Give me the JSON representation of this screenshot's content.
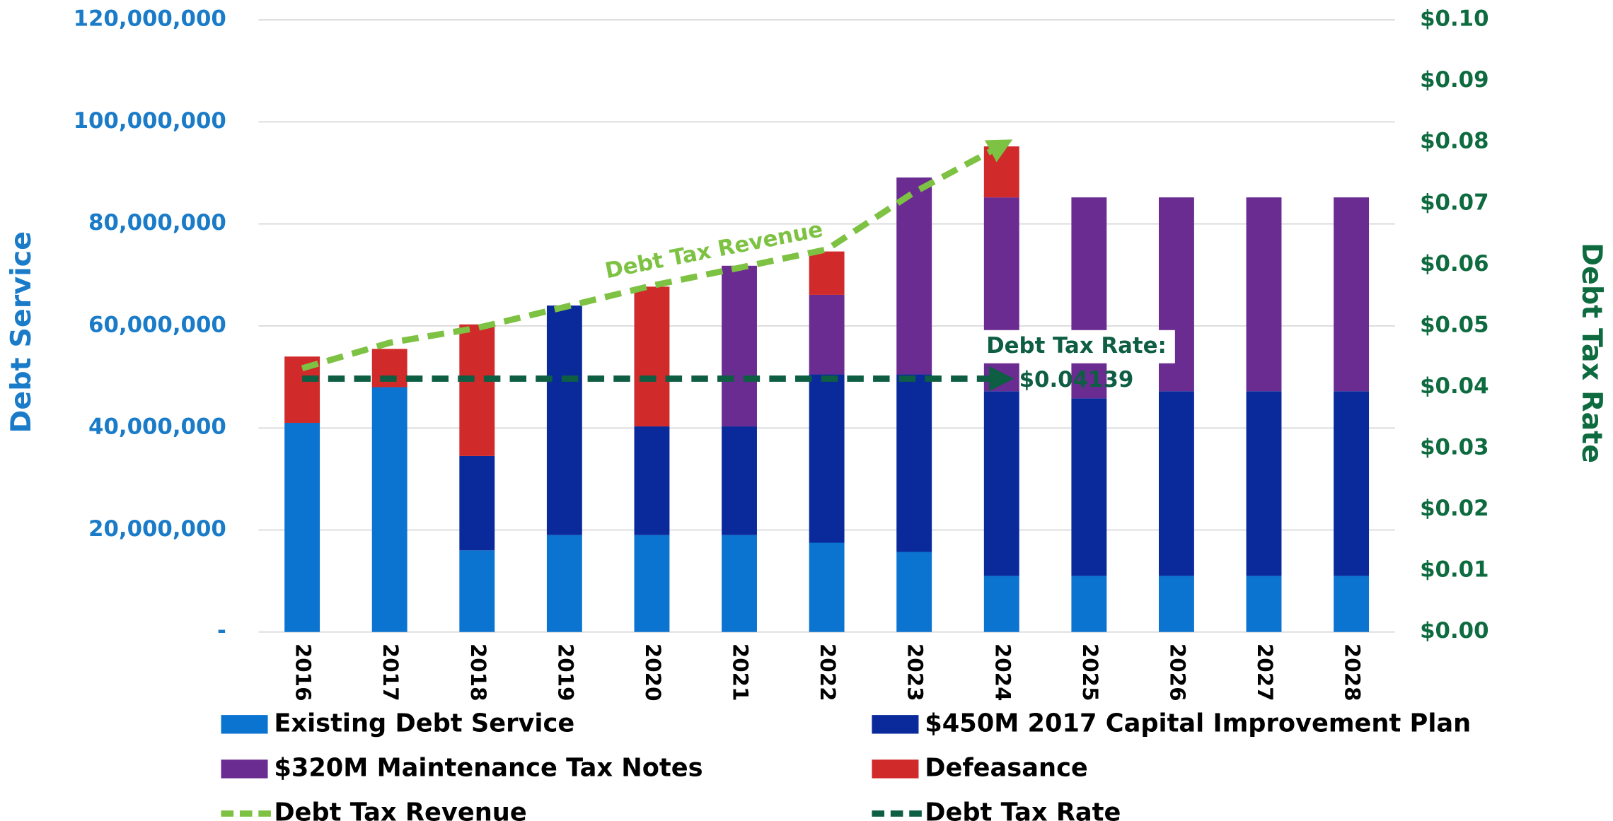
{
  "chart_data": {
    "type": "bar",
    "stacked": true,
    "categories": [
      "2016",
      "2017",
      "2018",
      "2019",
      "2020",
      "2021",
      "2022",
      "2023",
      "2024",
      "2025",
      "2026",
      "2027",
      "2028"
    ],
    "series": [
      {
        "name": "Existing Debt Service",
        "type": "bar",
        "color": "#0b74d1",
        "values": [
          41000000,
          48000000,
          16000000,
          19000000,
          19000000,
          19000000,
          17500000,
          15700000,
          11000000,
          11000000,
          11000000,
          11000000,
          11000000
        ]
      },
      {
        "name": "$450M 2017 Capital Improvement Plan",
        "type": "bar",
        "color": "#0a2a9c",
        "values": [
          null,
          null,
          18500000,
          45000000,
          21300000,
          21300000,
          33000000,
          34800000,
          36200000,
          34800000,
          36200000,
          36200000,
          36200000
        ]
      },
      {
        "name": "$320M Maintenance Tax Notes",
        "type": "bar",
        "color": "#6a2c91",
        "values": [
          null,
          null,
          null,
          null,
          null,
          31500000,
          15600000,
          38600000,
          38000000,
          39400000,
          38000000,
          38000000,
          38000000
        ]
      },
      {
        "name": "Defeasance",
        "type": "bar",
        "color": "#d02a2a",
        "values": [
          13000000,
          7500000,
          25800000,
          null,
          27400000,
          null,
          8500000,
          null,
          10000000,
          null,
          null,
          null,
          null
        ]
      },
      {
        "name": "Debt Tax Revenue",
        "type": "line",
        "dashed": true,
        "color": "#7dc242",
        "values": [
          51700000,
          56700000,
          59600000,
          63700000,
          67900000,
          71400000,
          75000000,
          86200000,
          95400000,
          null,
          null,
          null,
          null
        ]
      },
      {
        "name": "Debt Tax Rate",
        "type": "line",
        "dashed": true,
        "axis": "y2",
        "color": "#0e5e44",
        "values": [
          0.04139,
          0.04139,
          0.04139,
          0.04139,
          0.04139,
          0.04139,
          0.04139,
          0.04139,
          0.04139,
          null,
          null,
          null,
          null
        ]
      }
    ],
    "ylabel": "Debt Service",
    "y2label": "Debt Tax Rate",
    "ylim": [
      0,
      120000000
    ],
    "yticks": [
      {
        "value": 0,
        "label": "-"
      },
      {
        "value": 20000000,
        "label": "20,000,000"
      },
      {
        "value": 40000000,
        "label": "40,000,000"
      },
      {
        "value": 60000000,
        "label": "60,000,000"
      },
      {
        "value": 80000000,
        "label": "80,000,000"
      },
      {
        "value": 100000000,
        "label": "100,000,000"
      },
      {
        "value": 120000000,
        "label": "120,000,000"
      }
    ],
    "y2lim": [
      0,
      0.1
    ],
    "y2ticks": [
      {
        "value": 0,
        "label": "$0.00"
      },
      {
        "value": 0.01,
        "label": "$0.01"
      },
      {
        "value": 0.02,
        "label": "$0.02"
      },
      {
        "value": 0.03,
        "label": "$0.03"
      },
      {
        "value": 0.04,
        "label": "$0.04"
      },
      {
        "value": 0.05,
        "label": "$0.05"
      },
      {
        "value": 0.06,
        "label": "$0.06"
      },
      {
        "value": 0.07,
        "label": "$0.07"
      },
      {
        "value": 0.08,
        "label": "$0.08"
      },
      {
        "value": 0.09,
        "label": "$0.09"
      },
      {
        "value": 0.1,
        "label": "$0.10"
      }
    ],
    "grid": true,
    "legend": "bottom",
    "annotations": [
      "Debt Tax Revenue",
      "Debt Tax Rate:",
      "$0.04139"
    ]
  }
}
